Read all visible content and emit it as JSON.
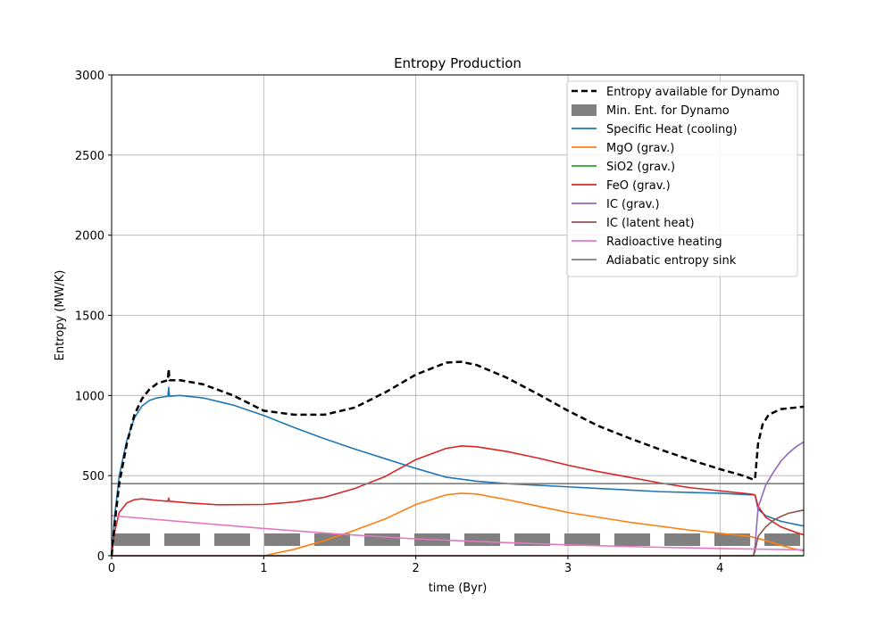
{
  "chart_data": {
    "type": "line",
    "title": "Entropy Production",
    "xlabel": "time (Byr)",
    "ylabel": "Entropy (MW/K)",
    "xlim": [
      0,
      4.55
    ],
    "ylim": [
      0,
      3000
    ],
    "xticks": [
      0,
      1,
      2,
      3,
      4
    ],
    "yticks": [
      0,
      500,
      1000,
      1500,
      2000,
      2500,
      3000
    ],
    "grid": true,
    "legend_position": "top-right",
    "series": [
      {
        "name": "Entropy available for Dynamo",
        "color": "#000000",
        "style": "dashed",
        "points": [
          [
            0.0,
            0
          ],
          [
            0.02,
            200
          ],
          [
            0.05,
            450
          ],
          [
            0.1,
            700
          ],
          [
            0.15,
            880
          ],
          [
            0.2,
            980
          ],
          [
            0.25,
            1040
          ],
          [
            0.3,
            1075
          ],
          [
            0.35,
            1090
          ],
          [
            0.37,
            1095
          ],
          [
            0.375,
            1165
          ],
          [
            0.38,
            1095
          ],
          [
            0.45,
            1095
          ],
          [
            0.6,
            1070
          ],
          [
            0.8,
            1000
          ],
          [
            1.0,
            905
          ],
          [
            1.2,
            880
          ],
          [
            1.4,
            880
          ],
          [
            1.6,
            925
          ],
          [
            1.8,
            1020
          ],
          [
            2.0,
            1130
          ],
          [
            2.2,
            1205
          ],
          [
            2.3,
            1210
          ],
          [
            2.4,
            1190
          ],
          [
            2.6,
            1110
          ],
          [
            2.8,
            1010
          ],
          [
            3.0,
            905
          ],
          [
            3.2,
            810
          ],
          [
            3.4,
            735
          ],
          [
            3.6,
            665
          ],
          [
            3.8,
            600
          ],
          [
            4.0,
            540
          ],
          [
            4.15,
            500
          ],
          [
            4.22,
            475
          ],
          [
            4.23,
            480
          ],
          [
            4.25,
            700
          ],
          [
            4.28,
            820
          ],
          [
            4.32,
            880
          ],
          [
            4.4,
            915
          ],
          [
            4.5,
            925
          ],
          [
            4.55,
            930
          ]
        ]
      },
      {
        "name": "Min. Ent. for Dynamo",
        "color": "#808080",
        "style": "thick-dashed",
        "points": [
          [
            0.0,
            100
          ],
          [
            4.55,
            100
          ]
        ]
      },
      {
        "name": "Specific Heat (cooling)",
        "color": "#1f77b4",
        "style": "solid",
        "points": [
          [
            0.0,
            0
          ],
          [
            0.02,
            250
          ],
          [
            0.05,
            500
          ],
          [
            0.1,
            720
          ],
          [
            0.15,
            860
          ],
          [
            0.2,
            935
          ],
          [
            0.25,
            970
          ],
          [
            0.3,
            985
          ],
          [
            0.37,
            995
          ],
          [
            0.375,
            1050
          ],
          [
            0.38,
            995
          ],
          [
            0.45,
            1000
          ],
          [
            0.6,
            985
          ],
          [
            0.8,
            940
          ],
          [
            1.0,
            875
          ],
          [
            1.2,
            800
          ],
          [
            1.4,
            730
          ],
          [
            1.6,
            665
          ],
          [
            1.8,
            605
          ],
          [
            2.0,
            545
          ],
          [
            2.2,
            490
          ],
          [
            2.4,
            465
          ],
          [
            2.6,
            450
          ],
          [
            2.8,
            440
          ],
          [
            3.0,
            430
          ],
          [
            3.2,
            420
          ],
          [
            3.4,
            410
          ],
          [
            3.6,
            400
          ],
          [
            3.8,
            395
          ],
          [
            4.0,
            390
          ],
          [
            4.2,
            380
          ],
          [
            4.23,
            380
          ],
          [
            4.25,
            290
          ],
          [
            4.3,
            250
          ],
          [
            4.4,
            215
          ],
          [
            4.5,
            195
          ],
          [
            4.55,
            185
          ]
        ]
      },
      {
        "name": "MgO (grav.)",
        "color": "#ff7f0e",
        "style": "solid",
        "points": [
          [
            0.0,
            0
          ],
          [
            1.0,
            0
          ],
          [
            1.2,
            40
          ],
          [
            1.4,
            95
          ],
          [
            1.6,
            160
          ],
          [
            1.8,
            230
          ],
          [
            2.0,
            320
          ],
          [
            2.2,
            380
          ],
          [
            2.3,
            390
          ],
          [
            2.4,
            385
          ],
          [
            2.6,
            350
          ],
          [
            2.8,
            310
          ],
          [
            3.0,
            270
          ],
          [
            3.2,
            240
          ],
          [
            3.4,
            210
          ],
          [
            3.6,
            185
          ],
          [
            3.8,
            160
          ],
          [
            4.0,
            140
          ],
          [
            4.2,
            120
          ],
          [
            4.3,
            95
          ],
          [
            4.4,
            65
          ],
          [
            4.5,
            40
          ],
          [
            4.55,
            30
          ]
        ]
      },
      {
        "name": "SiO2 (grav.)",
        "color": "#2ca02c",
        "style": "solid",
        "points": [
          [
            0.0,
            0
          ],
          [
            4.55,
            0
          ]
        ]
      },
      {
        "name": "FeO (grav.)",
        "color": "#d62728",
        "style": "solid",
        "points": [
          [
            0.0,
            0
          ],
          [
            0.02,
            150
          ],
          [
            0.05,
            270
          ],
          [
            0.1,
            330
          ],
          [
            0.15,
            350
          ],
          [
            0.2,
            355
          ],
          [
            0.3,
            345
          ],
          [
            0.37,
            340
          ],
          [
            0.375,
            360
          ],
          [
            0.38,
            340
          ],
          [
            0.5,
            330
          ],
          [
            0.7,
            318
          ],
          [
            1.0,
            320
          ],
          [
            1.2,
            335
          ],
          [
            1.4,
            365
          ],
          [
            1.6,
            420
          ],
          [
            1.8,
            495
          ],
          [
            2.0,
            600
          ],
          [
            2.2,
            670
          ],
          [
            2.3,
            685
          ],
          [
            2.4,
            680
          ],
          [
            2.6,
            650
          ],
          [
            2.8,
            610
          ],
          [
            3.0,
            565
          ],
          [
            3.2,
            525
          ],
          [
            3.4,
            490
          ],
          [
            3.6,
            455
          ],
          [
            3.8,
            425
          ],
          [
            4.0,
            405
          ],
          [
            4.2,
            385
          ],
          [
            4.23,
            380
          ],
          [
            4.25,
            310
          ],
          [
            4.3,
            240
          ],
          [
            4.4,
            180
          ],
          [
            4.5,
            145
          ],
          [
            4.55,
            130
          ]
        ]
      },
      {
        "name": "IC (grav.)",
        "color": "#9467bd",
        "style": "solid",
        "points": [
          [
            0.0,
            0
          ],
          [
            4.22,
            0
          ],
          [
            4.23,
            60
          ],
          [
            4.25,
            300
          ],
          [
            4.3,
            440
          ],
          [
            4.35,
            520
          ],
          [
            4.4,
            590
          ],
          [
            4.45,
            640
          ],
          [
            4.5,
            680
          ],
          [
            4.55,
            710
          ]
        ]
      },
      {
        "name": "IC (latent heat)",
        "color": "#8c564b",
        "style": "solid",
        "points": [
          [
            0.0,
            0
          ],
          [
            4.22,
            0
          ],
          [
            4.23,
            30
          ],
          [
            4.25,
            120
          ],
          [
            4.3,
            180
          ],
          [
            4.35,
            220
          ],
          [
            4.4,
            245
          ],
          [
            4.45,
            265
          ],
          [
            4.5,
            275
          ],
          [
            4.55,
            285
          ]
        ]
      },
      {
        "name": "Radioactive heating",
        "color": "#e377c2",
        "style": "solid",
        "points": [
          [
            0.0,
            250
          ],
          [
            0.5,
            210
          ],
          [
            1.0,
            170
          ],
          [
            1.5,
            135
          ],
          [
            2.0,
            105
          ],
          [
            2.5,
            85
          ],
          [
            3.0,
            68
          ],
          [
            3.5,
            55
          ],
          [
            4.0,
            45
          ],
          [
            4.5,
            38
          ],
          [
            4.55,
            37
          ]
        ]
      },
      {
        "name": "Adiabatic entropy sink",
        "color": "#7f7f7f",
        "style": "solid",
        "points": [
          [
            0.0,
            450
          ],
          [
            4.55,
            450
          ]
        ]
      }
    ]
  }
}
